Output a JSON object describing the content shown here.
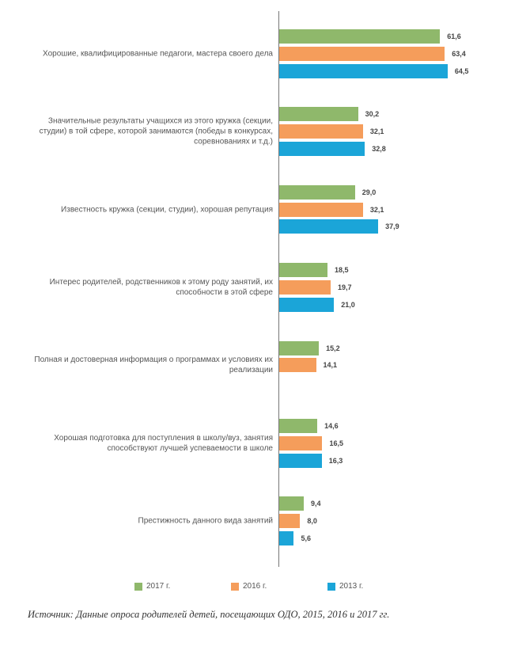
{
  "chart_data": {
    "type": "hbar",
    "categories": [
      "Хорошие, квалифицированные педагоги, мастера своего дела",
      "Значительные результаты учащихся из этого кружка (секции, студии) в той сфере, которой занимаются (победы в конкурсах, соревнованиях и т.д.)",
      "Известность кружка (секции, студии), хорошая репутация",
      "Интерес родителей, родственников к этому роду занятий, их способности в этой сфере",
      "Полная и достоверная информация о программах и условиях их реализации",
      "Хорошая подготовка для поступления в школу/вуз, занятия способствуют лучшей успеваемости в школе",
      "Престижность данного вида занятий"
    ],
    "series": [
      {
        "name": "2017 г.",
        "color": "#8fb86b",
        "values": [
          61.6,
          30.2,
          29.0,
          18.5,
          15.2,
          14.6,
          9.4
        ],
        "value_labels": [
          "61,6",
          "30,2",
          "29,0",
          "18,5",
          "15,2",
          "14,6",
          "9,4"
        ]
      },
      {
        "name": "2016 г.",
        "color": "#f59d5b",
        "values": [
          63.4,
          32.1,
          32.1,
          19.7,
          14.1,
          16.5,
          8.0
        ],
        "value_labels": [
          "63,4",
          "32,1",
          "32,1",
          "19,7",
          "14,1",
          "16,5",
          "8,0"
        ]
      },
      {
        "name": "2013 г.",
        "color": "#1ba5d8",
        "values": [
          64.5,
          32.8,
          37.9,
          21.0,
          null,
          16.3,
          5.6
        ],
        "value_labels": [
          "64,5",
          "32,8",
          "37,9",
          "21,0",
          null,
          "16,3",
          "5,6"
        ]
      }
    ],
    "source": "Источник: Данные опроса родителей детей, посещающих ОДО, 2015, 2016 и 2017 гг."
  }
}
